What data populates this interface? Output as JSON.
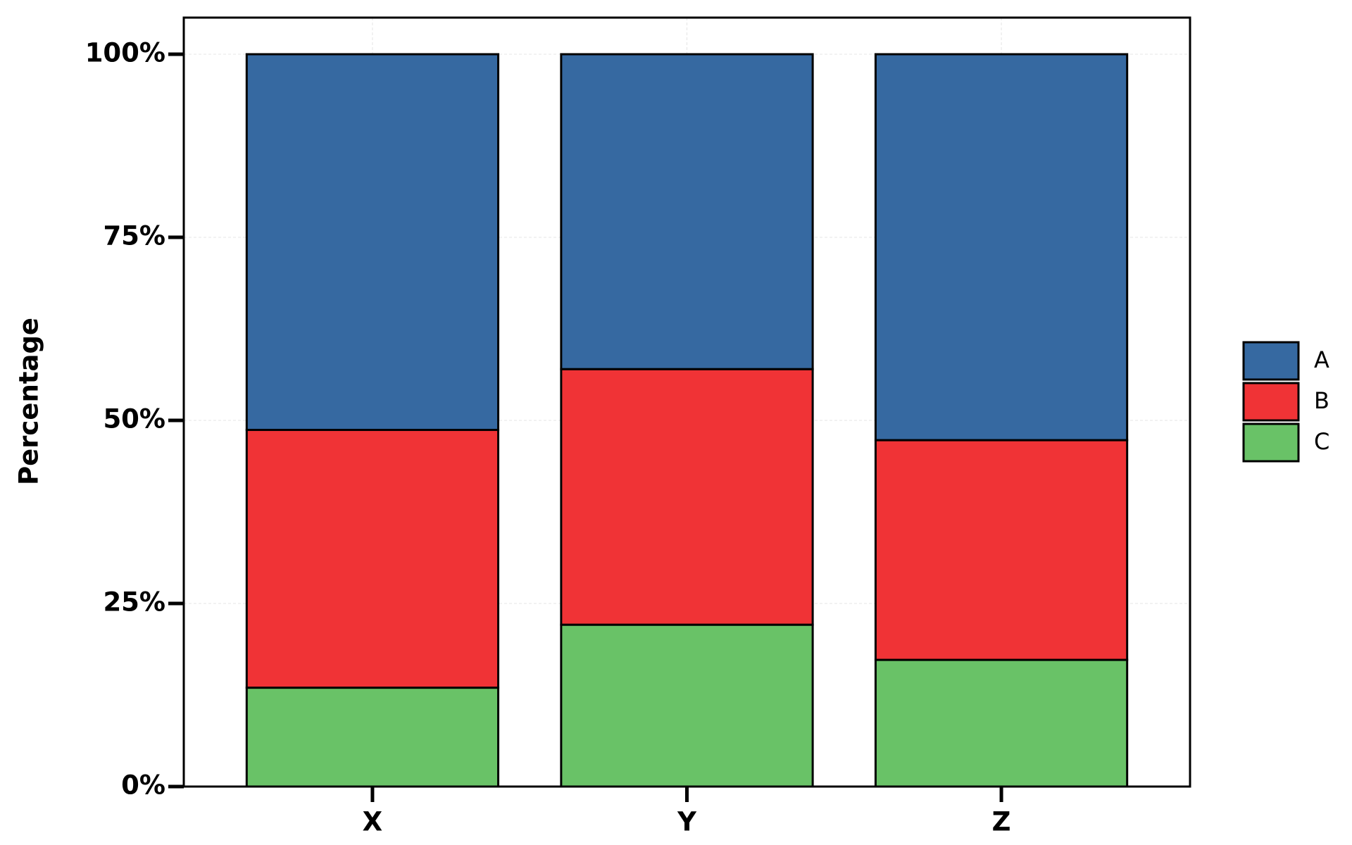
{
  "chart_data": {
    "type": "stacked_bar",
    "y_label": "Percentage",
    "categories": [
      "X",
      "Y",
      "Z"
    ],
    "series": [
      {
        "name": "A",
        "color": "#3669a1",
        "values": [
          51.3,
          43.0,
          52.7
        ]
      },
      {
        "name": "B",
        "color": "#f03336",
        "values": [
          35.2,
          34.9,
          30.0
        ]
      },
      {
        "name": "C",
        "color": "#69c267",
        "values": [
          13.5,
          22.1,
          17.3
        ]
      }
    ],
    "ylim": [
      0,
      105
    ],
    "yticks": [
      {
        "value": 0,
        "label": "0%"
      },
      {
        "value": 25,
        "label": "25%"
      },
      {
        "value": 50,
        "label": "50%"
      },
      {
        "value": 75,
        "label": "75%"
      },
      {
        "value": 100,
        "label": "100%"
      }
    ],
    "grid": true
  }
}
